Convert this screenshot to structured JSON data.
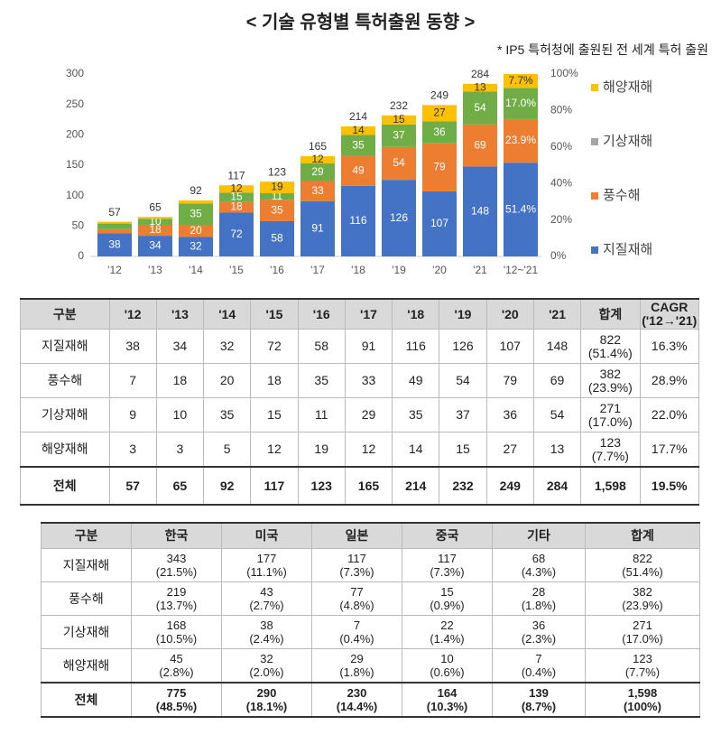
{
  "title": "< 기술 유형별 특허출원 동향 >",
  "note": "* IP5 특허청에 출원된 전 세계 특허 출원",
  "chart_data": {
    "type": "stacked_bar",
    "categories": [
      "'12",
      "'13",
      "'14",
      "'15",
      "'16",
      "'17",
      "'18",
      "'19",
      "'20",
      "'21",
      "'12~'21"
    ],
    "series": [
      {
        "name": "지질재해",
        "color": "#4472c4",
        "legend_color": "#4472c4",
        "label_color": "#ffffff",
        "values": [
          38,
          34,
          32,
          72,
          58,
          91,
          116,
          126,
          107,
          148,
          null
        ],
        "share": 51.4,
        "share_label": "51.4%"
      },
      {
        "name": "풍수해",
        "color": "#ed7d31",
        "legend_color": "#ed7d31",
        "label_color": "#ffffff",
        "values": [
          7,
          18,
          20,
          18,
          35,
          33,
          49,
          54,
          79,
          69,
          null
        ],
        "share": 23.9,
        "share_label": "23.9%"
      },
      {
        "name": "기상재해",
        "color": "#70ad47",
        "legend_color": "#a5a5a5",
        "label_color": "#ffffff",
        "values": [
          9,
          10,
          35,
          15,
          11,
          29,
          35,
          37,
          36,
          54,
          null
        ],
        "share": 17.0,
        "share_label": "17.0%"
      },
      {
        "name": "해양재해",
        "color": "#ffc000",
        "legend_color": "#ffc000",
        "label_color": "#333333",
        "values": [
          3,
          3,
          5,
          12,
          19,
          12,
          14,
          15,
          27,
          13,
          null
        ],
        "share": 7.7,
        "share_label": "7.7%"
      }
    ],
    "totals": [
      57,
      65,
      92,
      117,
      123,
      165,
      214,
      232,
      249,
      284,
      null
    ],
    "ylim": [
      0,
      300
    ],
    "yticks": [
      0,
      50,
      100,
      150,
      200,
      250,
      300
    ],
    "y2lim": [
      0,
      100
    ],
    "y2ticks": [
      {
        "value": 0,
        "label": "0%"
      },
      {
        "value": 20,
        "label": "20%"
      },
      {
        "value": 40,
        "label": "40%"
      },
      {
        "value": 60,
        "label": "60%"
      },
      {
        "value": 80,
        "label": "80%"
      },
      {
        "value": 100,
        "label": "100%"
      }
    ],
    "grid": false,
    "legend": "right"
  },
  "table1": {
    "header": [
      "구분",
      "'12",
      "'13",
      "'14",
      "'15",
      "'16",
      "'17",
      "'18",
      "'19",
      "'20",
      "'21",
      "합계",
      "CAGR\n('12→'21)"
    ],
    "rows": [
      [
        "지질재해",
        "38",
        "34",
        "32",
        "72",
        "58",
        "91",
        "116",
        "126",
        "107",
        "148",
        "822\n(51.4%)",
        "16.3%"
      ],
      [
        "풍수해",
        "7",
        "18",
        "20",
        "18",
        "35",
        "33",
        "49",
        "54",
        "79",
        "69",
        "382\n(23.9%)",
        "28.9%"
      ],
      [
        "기상재해",
        "9",
        "10",
        "35",
        "15",
        "11",
        "29",
        "35",
        "37",
        "36",
        "54",
        "271\n(17.0%)",
        "22.0%"
      ],
      [
        "해양재해",
        "3",
        "3",
        "5",
        "12",
        "19",
        "12",
        "14",
        "15",
        "27",
        "13",
        "123\n(7.7%)",
        "17.7%"
      ],
      [
        "전체",
        "57",
        "65",
        "92",
        "117",
        "123",
        "165",
        "214",
        "232",
        "249",
        "284",
        "1,598",
        "19.5%"
      ]
    ]
  },
  "table2": {
    "header": [
      "구분",
      "한국",
      "미국",
      "일본",
      "중국",
      "기타",
      "합계"
    ],
    "rows": [
      [
        "지질재해",
        "343\n(21.5%)",
        "177\n(11.1%)",
        "117\n(7.3%)",
        "117\n(7.3%)",
        "68\n(4.3%)",
        "822\n(51.4%)"
      ],
      [
        "풍수해",
        "219\n(13.7%)",
        "43\n(2.7%)",
        "77\n(4.8%)",
        "15\n(0.9%)",
        "28\n(1.8%)",
        "382\n(23.9%)"
      ],
      [
        "기상재해",
        "168\n(10.5%)",
        "38\n(2.4%)",
        "7\n(0.4%)",
        "22\n(1.4%)",
        "36\n(2.3%)",
        "271\n(17.0%)"
      ],
      [
        "해양재해",
        "45\n(2.8%)",
        "32\n(2.0%)",
        "29\n(1.8%)",
        "10\n(0.6%)",
        "7\n(0.4%)",
        "123\n(7.7%)"
      ],
      [
        "전체",
        "775\n(48.5%)",
        "290\n(18.1%)",
        "230\n(14.4%)",
        "164\n(10.3%)",
        "139\n(8.7%)",
        "1,598\n(100%)"
      ]
    ]
  }
}
